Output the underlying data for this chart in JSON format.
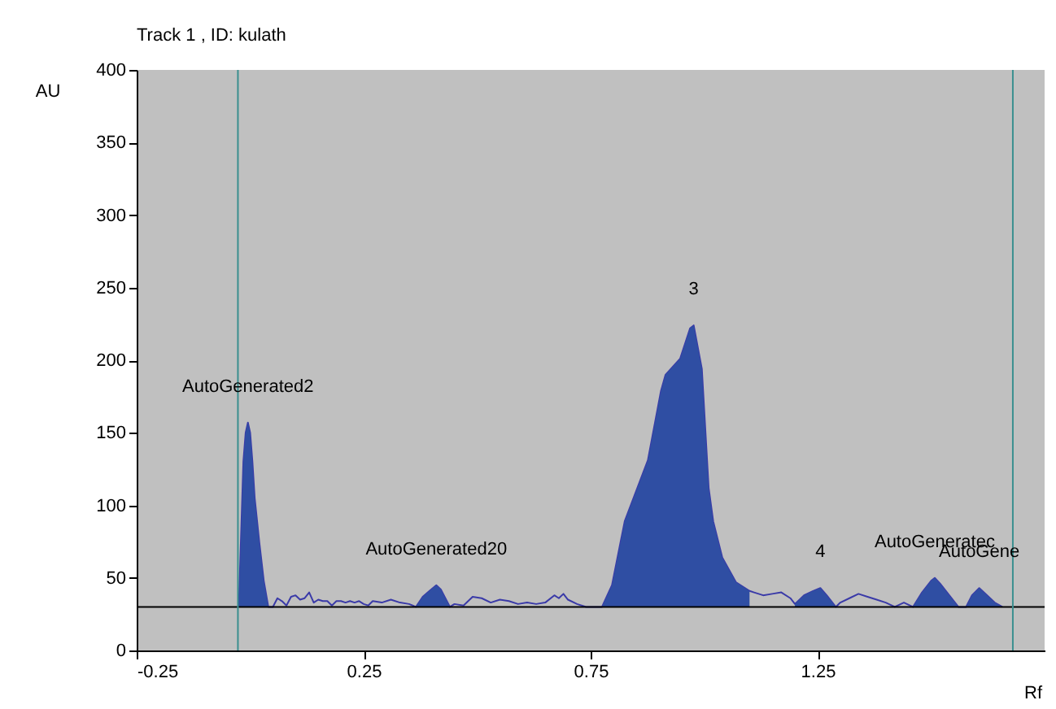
{
  "chart_data": {
    "type": "line",
    "title": "Track  1 , ID: kulath",
    "xlabel": "Rf",
    "ylabel": "AU",
    "xlim": [
      -0.25,
      1.75
    ],
    "ylim": [
      0,
      400
    ],
    "xticks": [
      -0.25,
      0.25,
      0.75,
      1.25
    ],
    "yticks": [
      0,
      50,
      100,
      150,
      200,
      250,
      300,
      350,
      400
    ],
    "grid": false,
    "series": [
      {
        "color": "#3a3aa8",
        "x": [
          -0.025,
          -0.02,
          -0.015,
          -0.01,
          -0.005,
          0.0,
          0.005,
          0.01,
          0.02,
          0.03,
          0.04,
          0.05,
          0.06,
          0.07,
          0.08,
          0.09,
          0.1,
          0.11,
          0.12,
          0.13,
          0.14,
          0.15,
          0.16,
          0.17,
          0.18,
          0.19,
          0.2,
          0.21,
          0.22,
          0.23,
          0.24,
          0.25,
          0.26,
          0.27,
          0.29,
          0.31,
          0.33,
          0.35,
          0.365,
          0.38,
          0.395,
          0.41,
          0.42,
          0.43,
          0.44,
          0.45,
          0.47,
          0.49,
          0.51,
          0.53,
          0.55,
          0.57,
          0.59,
          0.61,
          0.63,
          0.65,
          0.67,
          0.68,
          0.69,
          0.7,
          0.72,
          0.74,
          0.775,
          0.797,
          0.825,
          0.876,
          0.905,
          0.915,
          0.947,
          0.969,
          0.977,
          0.995,
          1.01,
          1.02,
          1.04,
          1.07,
          1.1,
          1.11,
          1.13,
          1.15,
          1.17,
          1.19,
          1.2,
          1.22,
          1.24,
          1.256,
          1.27,
          1.29,
          1.3,
          1.32,
          1.34,
          1.36,
          1.38,
          1.4,
          1.42,
          1.44,
          1.46,
          1.48,
          1.5,
          1.508,
          1.52,
          1.54,
          1.56,
          1.577,
          1.59,
          1.606,
          1.62,
          1.64,
          1.657
        ],
        "values": [
          30,
          80,
          130,
          150,
          157,
          150,
          130,
          105,
          75,
          48,
          30,
          30,
          36,
          34,
          31,
          37,
          38,
          35,
          36,
          40,
          33,
          35,
          34,
          34,
          31,
          34,
          34,
          33,
          34,
          33,
          34,
          32,
          31,
          34,
          33,
          35,
          33,
          32,
          30,
          37,
          41,
          45,
          42,
          36,
          30,
          32,
          31,
          37,
          36,
          33,
          35,
          34,
          32,
          33,
          32,
          33,
          38,
          36,
          39,
          35,
          32,
          30,
          30,
          45,
          89,
          131,
          179,
          190,
          201,
          222,
          224,
          194,
          112,
          89,
          64,
          47,
          41,
          40,
          38,
          39,
          40,
          36,
          32,
          38,
          41,
          43,
          38,
          30,
          33,
          36,
          39,
          37,
          35,
          33,
          30,
          33,
          30,
          40,
          48,
          50,
          46,
          38,
          30,
          30,
          38,
          43,
          39,
          33,
          30
        ]
      },
      {
        "type": "area",
        "color": "#2f4ea3",
        "x": [
          -0.025,
          -0.02,
          -0.015,
          -0.01,
          -0.005,
          0.0,
          0.005,
          0.01,
          0.02,
          0.03,
          0.04
        ],
        "values": [
          30,
          80,
          130,
          150,
          157,
          150,
          130,
          105,
          75,
          48,
          30
        ]
      },
      {
        "type": "area",
        "color": "#2f4ea3",
        "x": [
          0.365,
          0.38,
          0.395,
          0.41,
          0.42,
          0.43,
          0.44
        ],
        "values": [
          30,
          37,
          41,
          45,
          42,
          36,
          30
        ]
      },
      {
        "type": "area",
        "color": "#2f4ea3",
        "x": [
          0.775,
          0.797,
          0.825,
          0.876,
          0.905,
          0.915,
          0.947,
          0.969,
          0.977,
          0.995,
          1.01,
          1.02,
          1.04,
          1.07,
          1.1
        ],
        "values": [
          30,
          45,
          89,
          131,
          179,
          190,
          201,
          222,
          224,
          194,
          112,
          89,
          64,
          47,
          41
        ]
      },
      {
        "type": "area",
        "color": "#2f4ea3",
        "x": [
          1.2,
          1.22,
          1.24,
          1.256,
          1.27,
          1.29
        ],
        "values": [
          32,
          38,
          41,
          43,
          38,
          30
        ]
      },
      {
        "type": "area",
        "color": "#2f4ea3",
        "x": [
          1.46,
          1.48,
          1.5,
          1.508,
          1.52,
          1.54,
          1.56
        ],
        "values": [
          30,
          40,
          48,
          50,
          46,
          38,
          30
        ]
      },
      {
        "type": "area",
        "color": "#2f4ea3",
        "x": [
          1.577,
          1.59,
          1.606,
          1.62,
          1.64,
          1.657
        ],
        "values": [
          30,
          38,
          43,
          39,
          33,
          30
        ]
      }
    ],
    "ref_lines": [
      {
        "axis": "y",
        "value": 30,
        "color": "#000000"
      },
      {
        "axis": "x",
        "value": -0.027,
        "color": "#3a8f8f"
      },
      {
        "axis": "x",
        "value": 1.68,
        "color": "#3a8f8f"
      }
    ],
    "annotations": [
      {
        "text": "AutoGenerated2",
        "x": -0.005,
        "y": 157
      },
      {
        "text": "AutoGenerated20",
        "x": 0.41,
        "y": 45
      },
      {
        "text": "3",
        "x": 0.977,
        "y": 224
      },
      {
        "text": "4",
        "x": 1.256,
        "y": 43
      },
      {
        "text": "AutoGeneratec",
        "x": 1.508,
        "y": 50
      },
      {
        "text": "AutoGene",
        "x": 1.606,
        "y": 43
      }
    ]
  }
}
